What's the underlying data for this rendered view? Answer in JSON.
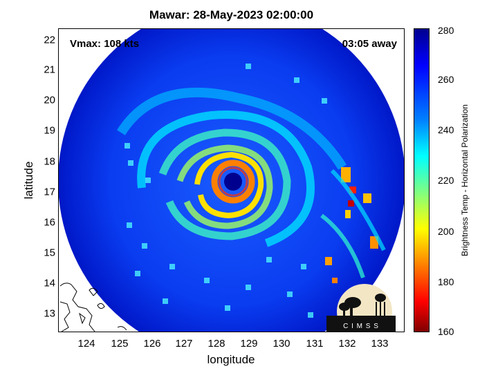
{
  "title": "Mawar: 28-May-2023 02:00:00",
  "vmax_label": "Vmax: 108 kts",
  "time_away_label": "03:05 away",
  "x_axis": {
    "label": "longitude",
    "ticks": [
      "124",
      "125",
      "126",
      "127",
      "128",
      "129",
      "130",
      "131",
      "132",
      "133"
    ]
  },
  "y_axis": {
    "label": "latitude",
    "ticks": [
      "22",
      "21",
      "20",
      "19",
      "18",
      "17",
      "16",
      "15",
      "14",
      "13"
    ]
  },
  "colorbar": {
    "label": "Brightness Temp - Horizontal Polarization",
    "ticks": [
      "280",
      "260",
      "240",
      "220",
      "200",
      "180",
      "160"
    ],
    "range": [
      160,
      280
    ],
    "colormap": "jet"
  },
  "storm": {
    "name": "Mawar",
    "eye_longitude": 128.4,
    "eye_latitude": 17.3
  },
  "map": {
    "lon_range": [
      123.1,
      133.6
    ],
    "lat_range": [
      12.5,
      22.4
    ],
    "swath_shape": "circular"
  },
  "logo": {
    "text": "C I M S S"
  },
  "colors": {
    "background": "#ffffff",
    "swath_base": "#0a3cf0",
    "eye": "#00008f",
    "eyewall": "#ff8000"
  }
}
